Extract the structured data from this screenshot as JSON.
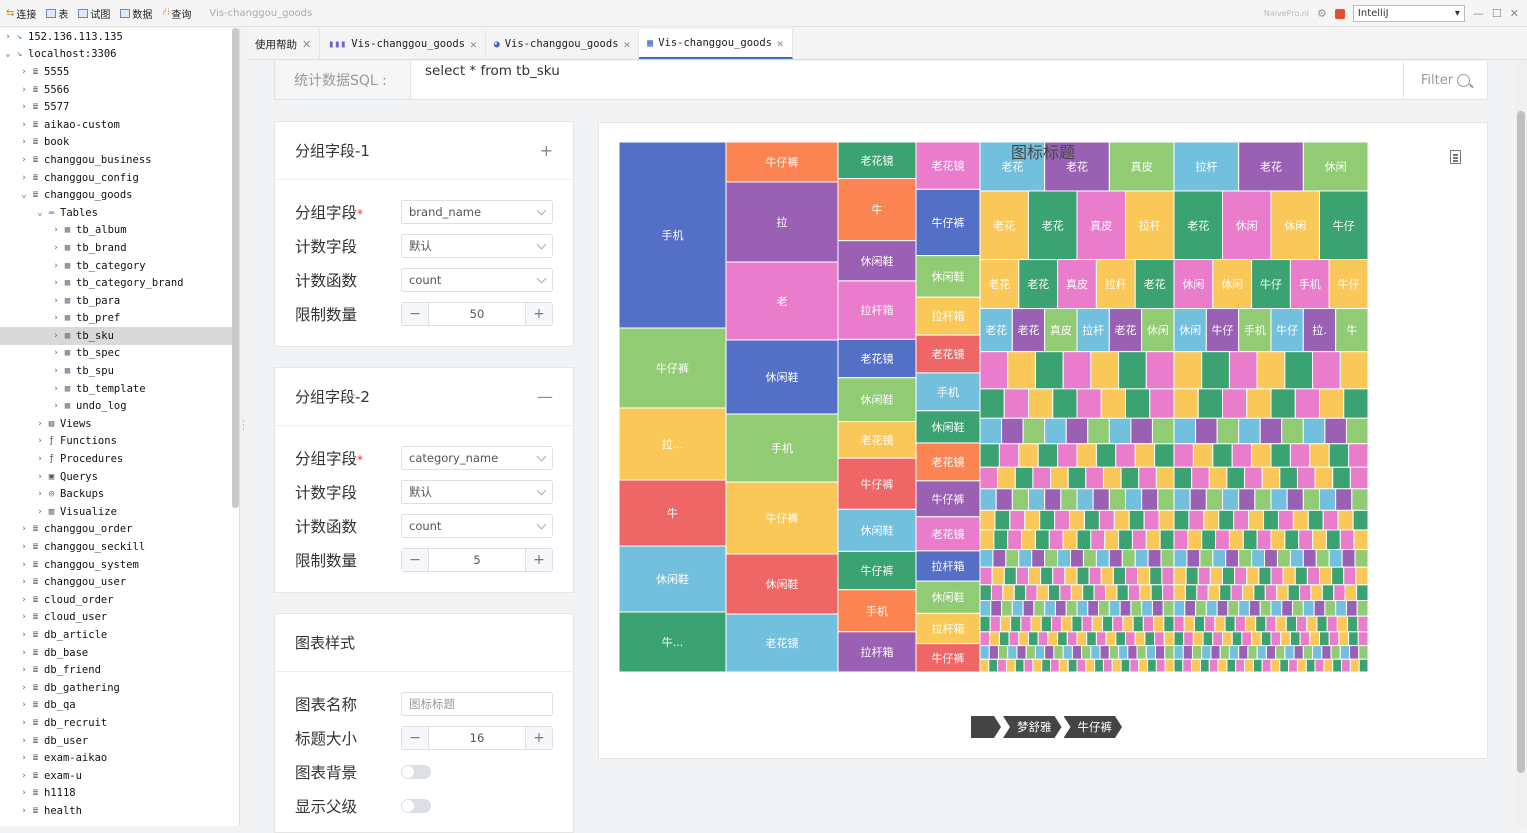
{
  "toolbar": {
    "items": [
      "连接",
      "表",
      "试图",
      "数据",
      "查询"
    ],
    "window_title": "Vis-changgou_goods",
    "brand": "NaivePro.nl",
    "theme_select": "IntelliJ"
  },
  "sidebar": {
    "rows": [
      {
        "label": "152.136.113.135",
        "depth": 0,
        "open": false,
        "icon": "conn"
      },
      {
        "label": "localhost:3306",
        "depth": 0,
        "open": true,
        "icon": "conn"
      },
      {
        "label": "5555",
        "depth": 1,
        "open": false,
        "icon": "db"
      },
      {
        "label": "5566",
        "depth": 1,
        "open": false,
        "icon": "db"
      },
      {
        "label": "5577",
        "depth": 1,
        "open": false,
        "icon": "db"
      },
      {
        "label": "aikao-custom",
        "depth": 1,
        "open": false,
        "icon": "db"
      },
      {
        "label": "book",
        "depth": 1,
        "open": false,
        "icon": "db"
      },
      {
        "label": "changgou_business",
        "depth": 1,
        "open": false,
        "icon": "db"
      },
      {
        "label": "changgou_config",
        "depth": 1,
        "open": false,
        "icon": "db"
      },
      {
        "label": "changgou_goods",
        "depth": 1,
        "open": true,
        "icon": "db"
      },
      {
        "label": "Tables",
        "depth": 2,
        "open": true,
        "icon": "folder"
      },
      {
        "label": "tb_album",
        "depth": 3,
        "open": false,
        "icon": "table"
      },
      {
        "label": "tb_brand",
        "depth": 3,
        "open": false,
        "icon": "table"
      },
      {
        "label": "tb_category",
        "depth": 3,
        "open": false,
        "icon": "table"
      },
      {
        "label": "tb_category_brand",
        "depth": 3,
        "open": false,
        "icon": "table"
      },
      {
        "label": "tb_para",
        "depth": 3,
        "open": false,
        "icon": "table"
      },
      {
        "label": "tb_pref",
        "depth": 3,
        "open": false,
        "icon": "table"
      },
      {
        "label": "tb_sku",
        "depth": 3,
        "open": false,
        "icon": "table",
        "selected": true
      },
      {
        "label": "tb_spec",
        "depth": 3,
        "open": false,
        "icon": "table"
      },
      {
        "label": "tb_spu",
        "depth": 3,
        "open": false,
        "icon": "table"
      },
      {
        "label": "tb_template",
        "depth": 3,
        "open": false,
        "icon": "table"
      },
      {
        "label": "undo_log",
        "depth": 3,
        "open": false,
        "icon": "table"
      },
      {
        "label": "Views",
        "depth": 2,
        "open": false,
        "icon": "view"
      },
      {
        "label": "Functions",
        "depth": 2,
        "open": false,
        "icon": "func"
      },
      {
        "label": "Procedures",
        "depth": 2,
        "open": false,
        "icon": "func"
      },
      {
        "label": "Querys",
        "depth": 2,
        "open": false,
        "icon": "query"
      },
      {
        "label": "Backups",
        "depth": 2,
        "open": false,
        "icon": "backup"
      },
      {
        "label": "Visualize",
        "depth": 2,
        "open": false,
        "icon": "vis"
      },
      {
        "label": "changgou_order",
        "depth": 1,
        "open": false,
        "icon": "db"
      },
      {
        "label": "changgou_seckill",
        "depth": 1,
        "open": false,
        "icon": "db"
      },
      {
        "label": "changgou_system",
        "depth": 1,
        "open": false,
        "icon": "db"
      },
      {
        "label": "changgou_user",
        "depth": 1,
        "open": false,
        "icon": "db"
      },
      {
        "label": "cloud_order",
        "depth": 1,
        "open": false,
        "icon": "db"
      },
      {
        "label": "cloud_user",
        "depth": 1,
        "open": false,
        "icon": "db"
      },
      {
        "label": "db_article",
        "depth": 1,
        "open": false,
        "icon": "db"
      },
      {
        "label": "db_base",
        "depth": 1,
        "open": false,
        "icon": "db"
      },
      {
        "label": "db_friend",
        "depth": 1,
        "open": false,
        "icon": "db"
      },
      {
        "label": "db_gathering",
        "depth": 1,
        "open": false,
        "icon": "db"
      },
      {
        "label": "db_qa",
        "depth": 1,
        "open": false,
        "icon": "db"
      },
      {
        "label": "db_recruit",
        "depth": 1,
        "open": false,
        "icon": "db"
      },
      {
        "label": "db_user",
        "depth": 1,
        "open": false,
        "icon": "db"
      },
      {
        "label": "exam-aikao",
        "depth": 1,
        "open": false,
        "icon": "db"
      },
      {
        "label": "exam-u",
        "depth": 1,
        "open": false,
        "icon": "db"
      },
      {
        "label": "h1118",
        "depth": 1,
        "open": false,
        "icon": "db"
      },
      {
        "label": "health",
        "depth": 1,
        "open": false,
        "icon": "db"
      }
    ]
  },
  "tabs": [
    {
      "label": "使用帮助",
      "icon": ""
    },
    {
      "label": "Vis-changgou_goods",
      "icon": "bar-chart-icon"
    },
    {
      "label": "Vis-changgou_goods",
      "icon": "pie-icon"
    },
    {
      "label": "Vis-changgou_goods",
      "icon": "grid-icon",
      "active": true
    }
  ],
  "sql": {
    "label": "统计数据SQL :",
    "query": "select * from tb_sku",
    "filter_label": "Filter"
  },
  "group1": {
    "title": "分组字段-1",
    "toggle": "+",
    "field_label": "分组字段",
    "field_value": "brand_name",
    "count_field_label": "计数字段",
    "count_field_value": "默认",
    "count_func_label": "计数函数",
    "count_func_value": "count",
    "limit_label": "限制数量",
    "limit_value": "50",
    "required_mark": "*",
    "minus": "−",
    "plus": "+"
  },
  "group2": {
    "title": "分组字段-2",
    "toggle": "—",
    "field_label": "分组字段",
    "field_value": "category_name",
    "count_field_label": "计数字段",
    "count_field_value": "默认",
    "count_func_label": "计数函数",
    "count_func_value": "count",
    "limit_label": "限制数量",
    "limit_value": "5",
    "required_mark": "*",
    "minus": "−",
    "plus": "+"
  },
  "style": {
    "title": "图表样式",
    "chart_name_label": "图表名称",
    "chart_name_placeholder": "图标标题",
    "title_size_label": "标题大小",
    "title_size_value": "16",
    "bg_label": "图表背景",
    "show_parent_label": "显示父级",
    "minus": "−",
    "plus": "+"
  },
  "breadcrumb": [
    "",
    "梦舒雅",
    "牛仔裤"
  ],
  "chart_data": {
    "type": "treemap",
    "title": "图标标题",
    "palette": [
      "#5470c6",
      "#91cc75",
      "#fac858",
      "#ee6666",
      "#73c0de",
      "#3ba272",
      "#fc8452",
      "#9a60b4",
      "#ea7ccc"
    ],
    "labeled_tiles": [
      "手机",
      "牛仔裤",
      "拉...",
      "牛",
      "休闲鞋",
      "牛...",
      "牛仔裤",
      "拉",
      "老",
      "休闲鞋",
      "手机",
      "牛仔裤",
      "休闲鞋",
      "老花镜",
      "老花镜",
      "牛",
      "休闲鞋",
      "拉杆箱",
      "老花镜",
      "休闲鞋",
      "老花镜",
      "牛仔裤",
      "休闲鞋",
      "牛仔裤",
      "手机",
      "拉杆箱",
      "老花镜",
      "牛仔裤",
      "休闲鞋",
      "拉杆箱",
      "老花镜",
      "手机",
      "休闲鞋",
      "老花镜",
      "牛仔裤",
      "老花镜",
      "拉杆箱",
      "休闲鞋",
      "拉杆箱",
      "牛仔裤",
      "老花镜",
      "老花镜",
      "真皮包",
      "拉杆箱",
      "老花镜",
      "休闲鞋",
      "休闲鞋",
      "牛仔裤"
    ]
  }
}
